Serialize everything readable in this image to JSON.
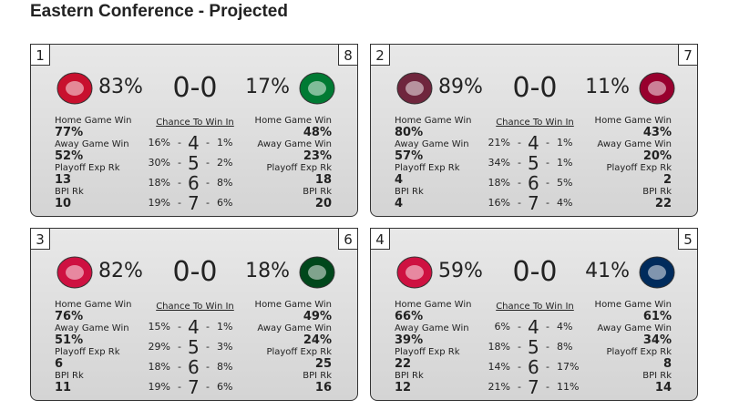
{
  "title": "Eastern Conference - Projected",
  "labels": {
    "home": "Home Game Win",
    "away": "Away Game Win",
    "playoff": "Playoff Exp Rk",
    "bpi": "BPI Rk",
    "chance": "Chance To Win In",
    "sep": "-"
  },
  "matchups": [
    {
      "seed_left": "1",
      "seed_right": "8",
      "score": "0-0",
      "left": {
        "pct": "83%",
        "home": "77%",
        "away": "52%",
        "playoff": "13",
        "bpi": "10"
      },
      "right": {
        "pct": "17%",
        "home": "48%",
        "away": "23%",
        "playoff": "18",
        "bpi": "20"
      },
      "games": [
        {
          "left": "16%",
          "n": "4",
          "right": "1%"
        },
        {
          "left": "30%",
          "n": "5",
          "right": "2%"
        },
        {
          "left": "18%",
          "n": "6",
          "right": "8%"
        },
        {
          "left": "19%",
          "n": "7",
          "right": "6%"
        }
      ]
    },
    {
      "seed_left": "2",
      "seed_right": "7",
      "score": "0-0",
      "left": {
        "pct": "89%",
        "home": "80%",
        "away": "57%",
        "playoff": "4",
        "bpi": "4"
      },
      "right": {
        "pct": "11%",
        "home": "43%",
        "away": "20%",
        "playoff": "2",
        "bpi": "22"
      },
      "games": [
        {
          "left": "21%",
          "n": "4",
          "right": "1%"
        },
        {
          "left": "34%",
          "n": "5",
          "right": "1%"
        },
        {
          "left": "18%",
          "n": "6",
          "right": "5%"
        },
        {
          "left": "16%",
          "n": "7",
          "right": "4%"
        }
      ]
    },
    {
      "seed_left": "3",
      "seed_right": "6",
      "score": "0-0",
      "left": {
        "pct": "82%",
        "home": "76%",
        "away": "51%",
        "playoff": "6",
        "bpi": "11"
      },
      "right": {
        "pct": "18%",
        "home": "49%",
        "away": "24%",
        "playoff": "25",
        "bpi": "16"
      },
      "games": [
        {
          "left": "15%",
          "n": "4",
          "right": "1%"
        },
        {
          "left": "29%",
          "n": "5",
          "right": "3%"
        },
        {
          "left": "18%",
          "n": "6",
          "right": "8%"
        },
        {
          "left": "19%",
          "n": "7",
          "right": "6%"
        }
      ]
    },
    {
      "seed_left": "4",
      "seed_right": "5",
      "score": "0-0",
      "left": {
        "pct": "59%",
        "home": "66%",
        "away": "39%",
        "playoff": "22",
        "bpi": "12"
      },
      "right": {
        "pct": "41%",
        "home": "61%",
        "away": "34%",
        "playoff": "8",
        "bpi": "14"
      },
      "games": [
        {
          "left": "6%",
          "n": "4",
          "right": "4%"
        },
        {
          "left": "18%",
          "n": "5",
          "right": "8%"
        },
        {
          "left": "14%",
          "n": "6",
          "right": "17%"
        },
        {
          "left": "21%",
          "n": "7",
          "right": "11%"
        }
      ]
    }
  ]
}
